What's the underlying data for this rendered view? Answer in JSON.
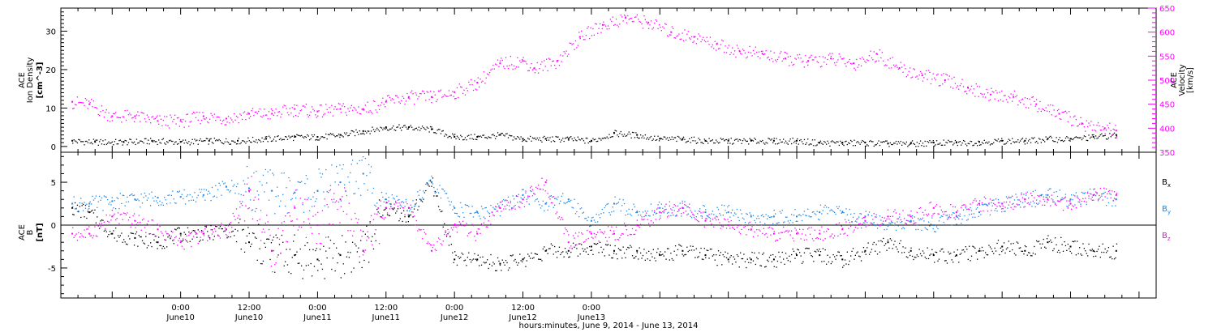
{
  "chart_data": [
    {
      "type": "scatter",
      "panel": "ion-density-velocity",
      "ylabel": [
        "ACE",
        "Ion Density",
        "[cm^-3]"
      ],
      "ylim": [
        -1.5,
        36
      ],
      "yticks": [
        0,
        10,
        20,
        30
      ],
      "ylabel_right": [
        "ACE",
        "Velocity",
        "[km/s]"
      ],
      "ylim_right": [
        350,
        650
      ],
      "yticks_right": [
        350,
        400,
        450,
        500,
        550,
        600,
        650
      ],
      "grid": false,
      "colors": {
        "density": "#000000",
        "velocity": "#ff00ff"
      },
      "series": [
        {
          "key": "density",
          "axis": "left",
          "color": "#000000",
          "x_hours": [
            -19,
            -15,
            -10,
            -5,
            0,
            5,
            10,
            15,
            20,
            24,
            28,
            32,
            36,
            40,
            44,
            48,
            52,
            56,
            60,
            64,
            68,
            72,
            76,
            80,
            84,
            88,
            92,
            96,
            100,
            104,
            108,
            112,
            116,
            120,
            124,
            128,
            132,
            136,
            140,
            144,
            148,
            152,
            156,
            160,
            164
          ],
          "values": [
            1.5,
            1.2,
            1.2,
            1.5,
            1.2,
            1.5,
            1.5,
            2,
            2.5,
            2.5,
            3,
            4,
            5,
            5,
            4.5,
            2.5,
            2.5,
            3,
            2,
            2,
            2,
            1.5,
            3.5,
            3,
            2,
            2,
            1.5,
            1.5,
            1.5,
            1.5,
            1.5,
            1,
            1,
            1,
            0.8,
            0.8,
            1,
            1,
            1.2,
            1.5,
            1.5,
            2,
            2,
            2.5,
            3
          ]
        },
        {
          "key": "velocity",
          "axis": "right",
          "color": "#ff00ff",
          "x_hours": [
            -19,
            -16,
            -12,
            -8,
            -4,
            0,
            4,
            8,
            12,
            16,
            20,
            24,
            28,
            32,
            36,
            40,
            44,
            48,
            52,
            56,
            60,
            62,
            66,
            70,
            74,
            78,
            82,
            86,
            90,
            94,
            98,
            102,
            106,
            110,
            114,
            118,
            122,
            126,
            130,
            134,
            138,
            142,
            146,
            150,
            154,
            158,
            162,
            164
          ],
          "values": [
            455,
            450,
            425,
            425,
            415,
            415,
            425,
            420,
            430,
            430,
            440,
            435,
            440,
            440,
            455,
            465,
            465,
            475,
            495,
            535,
            540,
            525,
            540,
            590,
            615,
            630,
            620,
            600,
            590,
            575,
            560,
            555,
            545,
            540,
            545,
            535,
            555,
            525,
            510,
            500,
            485,
            470,
            465,
            450,
            430,
            410,
            400,
            395
          ]
        }
      ]
    },
    {
      "type": "scatter",
      "panel": "magnetic-field",
      "ylabel": [
        "ACE",
        "B",
        "[nT]"
      ],
      "ylim": [
        -8.5,
        8.5
      ],
      "yticks": [
        -5,
        0,
        5
      ],
      "zero_line": true,
      "grid": false,
      "legend_position": "right",
      "colors": {
        "Bx": "#000000",
        "By": "#1e88e5",
        "Bz": "#ff00ff"
      },
      "series": [
        {
          "key": "Bx",
          "color": "#000000",
          "x_hours": [
            -19,
            -16,
            -12,
            -8,
            -4,
            0,
            4,
            8,
            12,
            16,
            20,
            24,
            28,
            32,
            36,
            40,
            44,
            48,
            52,
            56,
            60,
            64,
            68,
            72,
            76,
            80,
            84,
            88,
            92,
            96,
            100,
            104,
            108,
            112,
            116,
            120,
            124,
            128,
            132,
            136,
            140,
            144,
            148,
            152,
            156,
            160,
            164
          ],
          "values": [
            2,
            1.5,
            -1,
            -1.5,
            -2,
            -1,
            -1,
            -0.5,
            -2,
            -3,
            -3.5,
            -4,
            -3.5,
            -3,
            2,
            1,
            5,
            -4,
            -4,
            -4.5,
            -4,
            -3,
            -3,
            -2.5,
            -3,
            -3,
            -3.5,
            -3,
            -3.5,
            -4,
            -4,
            -4,
            -3.5,
            -3.5,
            -4,
            -3,
            -2,
            -3,
            -3.5,
            -3.5,
            -3,
            -2.5,
            -3,
            -2,
            -2.5,
            -3,
            -3
          ]
        },
        {
          "key": "By",
          "color": "#1e88e5",
          "x_hours": [
            -19,
            -16,
            -12,
            -8,
            -4,
            0,
            4,
            8,
            12,
            16,
            20,
            24,
            28,
            32,
            36,
            40,
            44,
            48,
            52,
            56,
            60,
            64,
            68,
            72,
            76,
            80,
            84,
            88,
            92,
            96,
            100,
            104,
            108,
            112,
            116,
            120,
            124,
            128,
            132,
            136,
            140,
            144,
            148,
            152,
            156,
            160,
            164
          ],
          "values": [
            2.5,
            2.5,
            2.8,
            3,
            3.2,
            3.3,
            3.5,
            4.5,
            4.3,
            4,
            3.8,
            4,
            5,
            6,
            3,
            2,
            5,
            2,
            1.5,
            2,
            3.5,
            2.5,
            3,
            0.5,
            2.5,
            1.5,
            2,
            2,
            1.5,
            1.5,
            1,
            1,
            1,
            1.5,
            1.5,
            1,
            0,
            0.5,
            0,
            1,
            1.5,
            2.5,
            3,
            3.5,
            3,
            3.5,
            3
          ]
        },
        {
          "key": "Bz",
          "color": "#ff00ff",
          "x_hours": [
            -19,
            -16,
            -12,
            -8,
            -4,
            0,
            4,
            8,
            12,
            16,
            20,
            24,
            28,
            32,
            36,
            40,
            44,
            48,
            52,
            56,
            60,
            64,
            68,
            72,
            76,
            80,
            84,
            88,
            92,
            96,
            100,
            104,
            108,
            112,
            116,
            120,
            124,
            128,
            132,
            136,
            140,
            144,
            148,
            152,
            156,
            160,
            164
          ],
          "values": [
            -1,
            -1,
            1,
            0.5,
            -0.5,
            -2,
            -1,
            -0.5,
            4,
            -3,
            2,
            0,
            3,
            -3,
            2,
            2,
            -3,
            0,
            -1,
            2,
            3,
            5,
            -2,
            -1,
            -1,
            0,
            1.5,
            2,
            0.5,
            0,
            -0.5,
            -1,
            -1,
            -1,
            -0.5,
            0.5,
            1,
            1,
            2,
            1.5,
            2.5,
            2.5,
            3,
            3,
            2.5,
            3.5,
            3.5
          ]
        }
      ],
      "legend": [
        {
          "key": "Bx",
          "label": "B",
          "sub": "x",
          "color": "#000000"
        },
        {
          "key": "By",
          "label": "B",
          "sub": "y",
          "color": "#1e88e5"
        },
        {
          "key": "Bz",
          "label": "B",
          "sub": "z",
          "color": "#ff00ff"
        }
      ]
    }
  ],
  "x_axis": {
    "range_hours": [
      -21,
      171
    ],
    "ticks": [
      {
        "hours": 0,
        "time": "0:00",
        "day": "June10"
      },
      {
        "hours": 12,
        "time": "12:00",
        "day": "June10"
      },
      {
        "hours": 24,
        "time": "0:00",
        "day": "June11"
      },
      {
        "hours": 36,
        "time": "12:00",
        "day": "June11"
      },
      {
        "hours": 48,
        "time": "0:00",
        "day": "June12"
      },
      {
        "hours": 60,
        "time": "12:00",
        "day": "June12"
      },
      {
        "hours": 72,
        "time": "0:00",
        "day": "June13"
      }
    ],
    "title": "hours:minutes,  June  9, 2014 - June 13, 2014"
  }
}
